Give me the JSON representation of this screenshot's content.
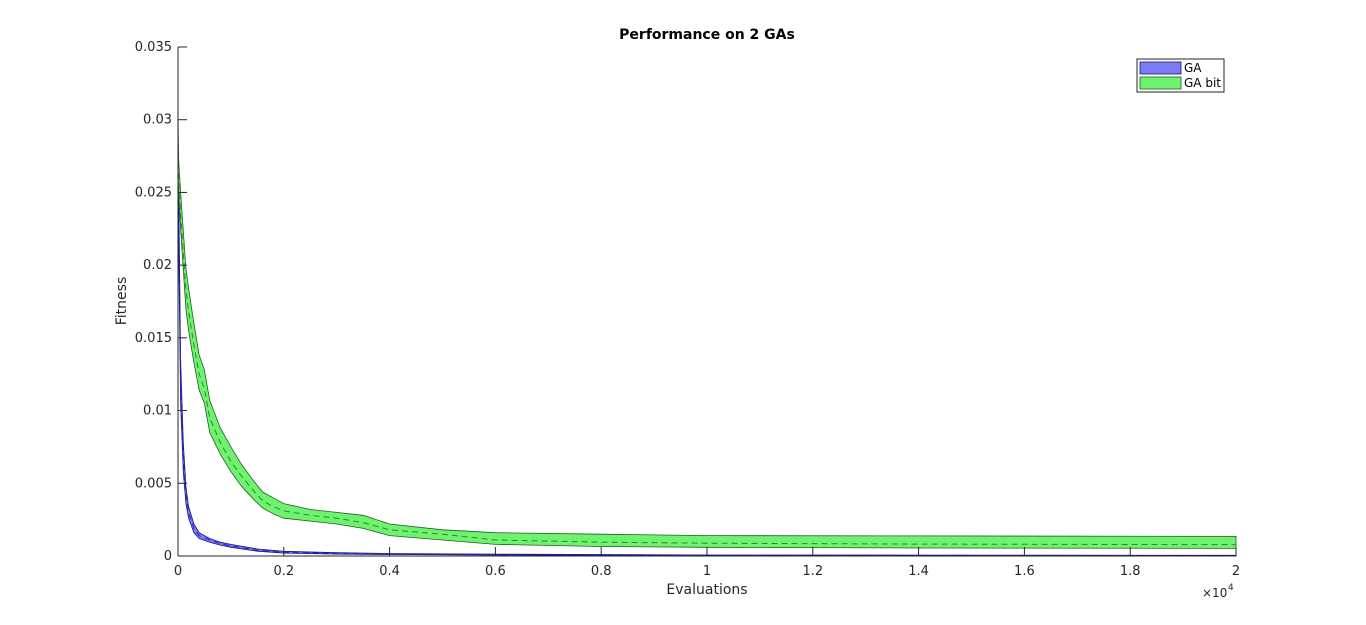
{
  "chart_data": {
    "type": "area",
    "title": "Performance on 2 GAs",
    "xlabel": "Evaluations",
    "ylabel": "Fitness",
    "x_multiplier_label": {
      "base": "×10",
      "exponent": "4"
    },
    "xlim": [
      0,
      20000
    ],
    "ylim": [
      0,
      0.035
    ],
    "x_ticks": [
      0,
      2000,
      4000,
      6000,
      8000,
      10000,
      12000,
      14000,
      16000,
      18000,
      20000
    ],
    "x_tick_labels": [
      "0",
      "0.2",
      "0.4",
      "0.6",
      "0.8",
      "1",
      "1.2",
      "1.4",
      "1.6",
      "1.8",
      "2"
    ],
    "y_ticks": [
      0,
      0.005,
      0.01,
      0.015,
      0.02,
      0.025,
      0.03,
      0.035
    ],
    "y_tick_labels": [
      "0",
      "0.005",
      "0.01",
      "0.015",
      "0.02",
      "0.025",
      "0.03",
      "0.035"
    ],
    "grid": false,
    "legend_position": "top-right",
    "series": [
      {
        "name": "GA",
        "fill_color": "#7b7bf7",
        "edge_color": "#1a1a5e",
        "line_color": "#1a1aff",
        "x": [
          0,
          20,
          50,
          100,
          150,
          200,
          300,
          400,
          600,
          800,
          1000,
          1500,
          2000,
          3000,
          4000,
          6000,
          8000,
          10000,
          14000,
          20000
        ],
        "mean": [
          0.029,
          0.021,
          0.012,
          0.0068,
          0.0042,
          0.003,
          0.0019,
          0.0014,
          0.0011,
          0.00085,
          0.0007,
          0.0004,
          0.00025,
          0.00018,
          0.00013,
          0.0001,
          7e-05,
          5e-05,
          4e-05,
          3e-05
        ],
        "upper": [
          0.031,
          0.023,
          0.0135,
          0.0078,
          0.0048,
          0.0034,
          0.0022,
          0.0016,
          0.0012,
          0.00095,
          0.0008,
          0.00048,
          0.00032,
          0.00023,
          0.00017,
          0.00013,
          0.0001,
          7e-05,
          6e-05,
          5e-05
        ],
        "lower": [
          0.027,
          0.019,
          0.0105,
          0.0058,
          0.0036,
          0.0026,
          0.0016,
          0.0012,
          0.00095,
          0.00075,
          0.0006,
          0.00033,
          0.0002,
          0.00013,
          0.0001,
          7e-05,
          5e-05,
          3e-05,
          2e-05,
          1e-05
        ]
      },
      {
        "name": "GA bit",
        "fill_color": "#6ff26f",
        "edge_color": "#1f5f1f",
        "line_color": "#2a8a2a",
        "x": [
          0,
          50,
          150,
          200,
          300,
          400,
          500,
          600,
          800,
          1000,
          1200,
          1400,
          1600,
          1800,
          2000,
          2500,
          3000,
          3500,
          4000,
          5000,
          6000,
          8000,
          10000,
          14000,
          20000
        ],
        "mean": [
          0.027,
          0.0235,
          0.0183,
          0.0168,
          0.0145,
          0.0125,
          0.0115,
          0.0095,
          0.0078,
          0.0065,
          0.0055,
          0.0046,
          0.0038,
          0.0034,
          0.0031,
          0.0028,
          0.0026,
          0.0023,
          0.0018,
          0.0015,
          0.0011,
          0.00095,
          0.00088,
          0.00082,
          0.00078
        ],
        "upper": [
          0.028,
          0.025,
          0.0198,
          0.0184,
          0.016,
          0.0138,
          0.0128,
          0.0107,
          0.0088,
          0.0075,
          0.0063,
          0.0053,
          0.0044,
          0.004,
          0.0036,
          0.0032,
          0.003,
          0.0028,
          0.0022,
          0.0018,
          0.0016,
          0.0015,
          0.0014,
          0.00138,
          0.00135
        ],
        "lower": [
          0.026,
          0.0225,
          0.017,
          0.0155,
          0.0133,
          0.0114,
          0.0105,
          0.0085,
          0.007,
          0.0058,
          0.0048,
          0.004,
          0.0033,
          0.0029,
          0.0026,
          0.0024,
          0.0022,
          0.0019,
          0.0014,
          0.0011,
          0.0008,
          0.00065,
          0.0006,
          0.00055,
          0.00052
        ]
      }
    ]
  }
}
